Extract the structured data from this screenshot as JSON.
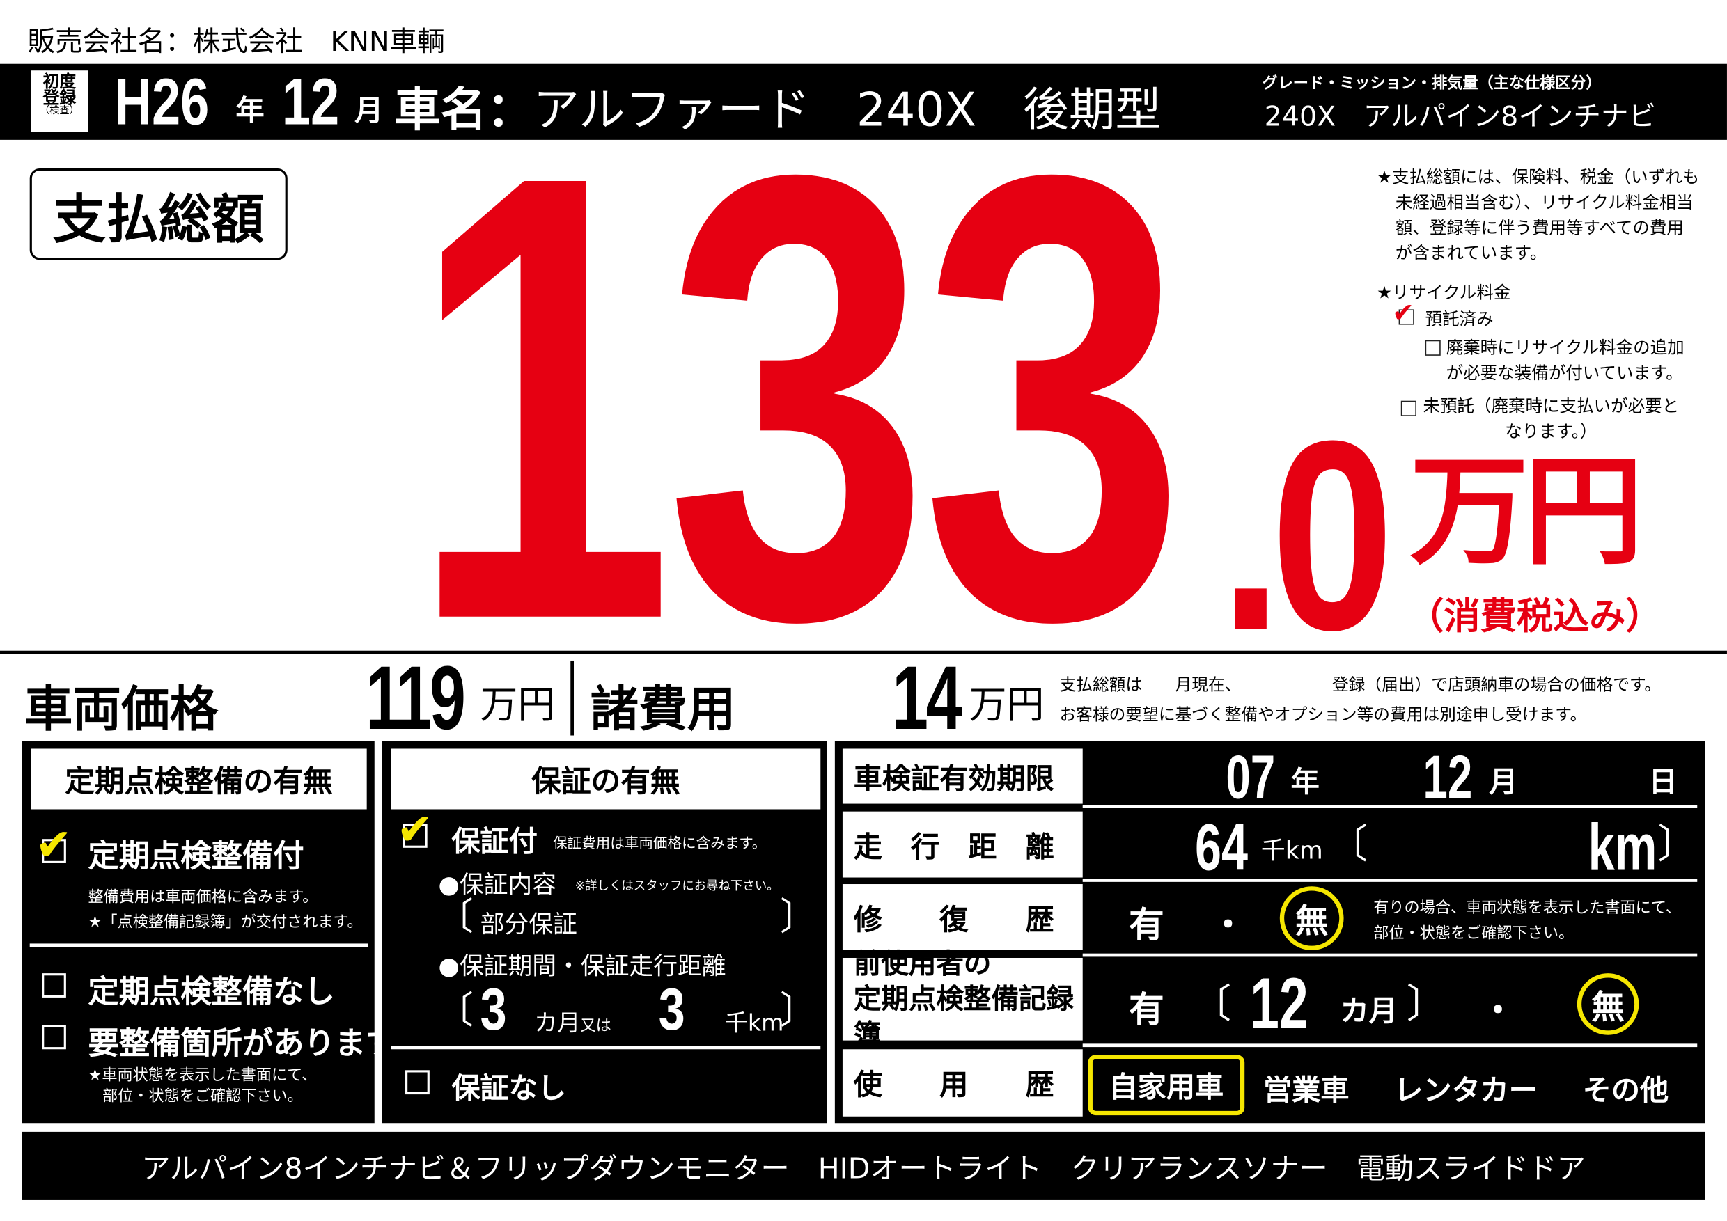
{
  "dealer": {
    "label": "販売会社名：",
    "name": "株式会社　KNN車輌"
  },
  "header": {
    "first_registration_label": [
      "初度",
      "登録",
      "（検査）"
    ],
    "year": "H26",
    "year_unit": "年",
    "month": "12",
    "month_unit": "月",
    "car_name_label": "車名：",
    "car_name": "アルファード　240X　後期型",
    "grade_label": "グレード・ミッション・排気量（主な仕様区分）",
    "grade_value": "240X　アルパイン8インチナビ"
  },
  "total": {
    "label": "支払総額",
    "integer": "133",
    "decimal": ".0",
    "unit": "万円",
    "tax_note": "（消費税込み）",
    "color": "#e60012"
  },
  "notes": {
    "total_note": [
      "★支払総額には、保険料、税金（いずれも",
      "未経過相当含む）、リサイクル料金相当",
      "額、登録等に伴う費用等すべての費用",
      "が含まれています。"
    ],
    "recycle_title": "★リサイクル料金",
    "recycle_options": [
      {
        "label": "預託済み",
        "checked": true
      },
      {
        "label": "廃棄時にリサイクル料金の追加",
        "label2": "が必要な装備が付いています。",
        "checked": false
      },
      {
        "label": "未預託（廃棄時に支払いが必要と",
        "label2": "なります。）",
        "checked": false
      }
    ]
  },
  "breakdown": {
    "vehicle_price_label": "車両価格",
    "vehicle_price": "119",
    "vehicle_unit": "万円",
    "fees_label": "諸費用",
    "fees": "14",
    "fees_unit": "万円",
    "note1": "支払総額は　　月現在、　　　　　　登録（届出）で店頭納車の場合の価格です。",
    "note2": "お客様の要望に基づく整備やオプション等の費用は別途申し受けます。"
  },
  "inspection": {
    "title": "定期点検整備の有無",
    "with": {
      "label": "定期点検整備付",
      "checked": true,
      "note1": "整備費用は車両価格に含みます。",
      "note2": "★「点検整備記録簿」が交付されます。"
    },
    "without": {
      "label": "定期点検整備なし",
      "checked": false
    },
    "needs": {
      "label": "要整備箇所があります",
      "checked": false,
      "note1": "★車両状態を表示した書面にて、",
      "note2": "部位・状態をご確認下さい。"
    }
  },
  "warranty": {
    "title": "保証の有無",
    "with": {
      "label": "保証付",
      "checked": true,
      "note": "保証費用は車両価格に含みます。"
    },
    "content_label": "●保証内容",
    "content_note": "※詳しくはスタッフにお尋ね下さい。",
    "content_value": "部分保証",
    "period_label": "●保証期間・保証走行距離",
    "months": "3",
    "months_unit": "カ月",
    "or": "又は",
    "distance": "3",
    "distance_unit": "千km",
    "without": {
      "label": "保証なし",
      "checked": false
    }
  },
  "specs": {
    "shaken": {
      "label": "車検証有効期限",
      "year": "07",
      "year_unit": "年",
      "month": "12",
      "month_unit": "月",
      "day": "",
      "day_unit": "日"
    },
    "mileage": {
      "label": "走　行　距　離",
      "value": "64",
      "unit": "千km",
      "bracket_unit": "km"
    },
    "repair": {
      "label": "修　　復　　歴",
      "yes": "有",
      "sep": "・",
      "no": "無",
      "selected": "無",
      "note1": "有りの場合、車両状態を表示した書面にて、",
      "note2": "部位・状態をご確認下さい。"
    },
    "records": {
      "label1": "前使用者の",
      "label2": "定期点検整備記録簿",
      "yes": "有",
      "months": "12",
      "months_unit": "カ月",
      "sep": "・",
      "no": "無",
      "selected": "無"
    },
    "usage": {
      "label": "使　　用　　歴",
      "options": [
        "自家用車",
        "営業車",
        "レンタカー",
        "その他"
      ],
      "selected": "自家用車"
    }
  },
  "equipment": "アルパイン8インチナビ＆フリップダウンモニター　HIDオートライト　クリアランスソナー　電動スライドドア",
  "highlight_color": "#f5e600"
}
